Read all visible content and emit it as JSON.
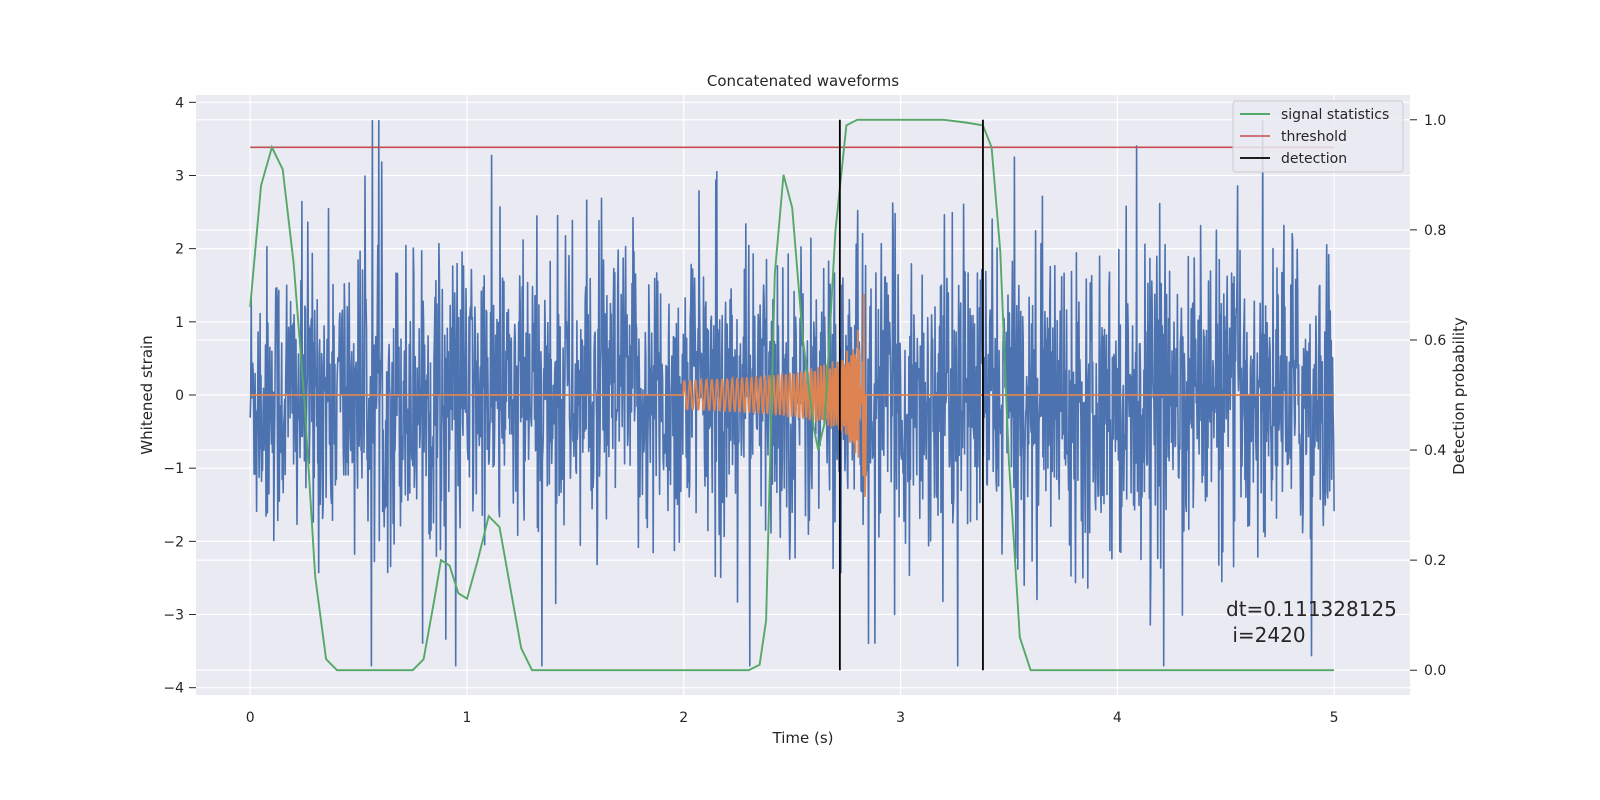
{
  "chart_data": {
    "type": "line",
    "title": "Concatenated waveforms",
    "xlabel": "Time (s)",
    "ylabel": "Whitened strain",
    "y2label": "Detection probability",
    "xlim": [
      -0.25,
      5.35
    ],
    "ylim": [
      -4.1,
      4.1
    ],
    "y2lim": [
      -0.045,
      1.045
    ],
    "xticks": [
      0,
      1,
      2,
      3,
      4,
      5
    ],
    "yticks": [
      -4,
      -3,
      -2,
      -1,
      0,
      1,
      2,
      3,
      4
    ],
    "y2ticks": [
      0.0,
      0.2,
      0.4,
      0.6,
      0.8,
      1.0
    ],
    "y2tick_labels": [
      "0.0",
      "0.2",
      "0.4",
      "0.6",
      "0.8",
      "1.0"
    ],
    "grid": true,
    "legend_position": "top-right",
    "legend": [
      {
        "label": "signal statistics",
        "color": "#55a868"
      },
      {
        "label": "threshold",
        "color": "#c44e52"
      },
      {
        "label": "detection",
        "color": "#000000"
      }
    ],
    "series": [
      {
        "name": "whitened strain",
        "color": "#4c72b0",
        "x_range": [
          0,
          5
        ],
        "amplitude_envelope": [
          -3.7,
          3.75
        ]
      },
      {
        "name": "injected waveform",
        "color": "#dd8452",
        "chirp_start": 2.0,
        "chirp_end": 2.84,
        "peak": 1.4
      },
      {
        "name": "signal statistics",
        "axis": "y2",
        "color": "#55a868",
        "x": [
          0,
          0.05,
          0.1,
          0.15,
          0.2,
          0.25,
          0.3,
          0.35,
          0.4,
          0.5,
          0.6,
          0.75,
          0.8,
          0.85,
          0.88,
          0.92,
          0.96,
          1.0,
          1.05,
          1.1,
          1.15,
          1.2,
          1.25,
          1.3,
          1.4,
          1.6,
          2.0,
          2.3,
          2.35,
          2.38,
          2.42,
          2.46,
          2.5,
          2.55,
          2.6,
          2.62,
          2.65,
          2.7,
          2.75,
          2.8,
          2.9,
          3.0,
          3.2,
          3.3,
          3.38,
          3.42,
          3.46,
          3.5,
          3.55,
          3.6,
          3.7,
          4.0,
          5.0
        ],
        "values": [
          0.66,
          0.88,
          0.95,
          0.91,
          0.74,
          0.49,
          0.17,
          0.02,
          0.0,
          0.0,
          0.0,
          0.0,
          0.02,
          0.13,
          0.2,
          0.19,
          0.14,
          0.13,
          0.2,
          0.28,
          0.26,
          0.15,
          0.04,
          0.0,
          0.0,
          0.0,
          0.0,
          0.0,
          0.01,
          0.09,
          0.72,
          0.9,
          0.84,
          0.6,
          0.44,
          0.4,
          0.45,
          0.8,
          0.99,
          1.0,
          1.0,
          1.0,
          1.0,
          0.995,
          0.99,
          0.95,
          0.76,
          0.38,
          0.06,
          0.0,
          0.0,
          0.0,
          0.0
        ]
      },
      {
        "name": "threshold",
        "axis": "y2",
        "color": "#c44e52",
        "x": [
          0,
          5
        ],
        "values": [
          0.95,
          0.95
        ]
      }
    ],
    "detections": [
      2.72,
      3.38
    ],
    "detection_y2_range": [
      0.0,
      1.0
    ],
    "annotation": {
      "line1": "dt=0.111328125",
      "line2": " i=2420",
      "x": 4.5,
      "y2": 0.11
    }
  }
}
